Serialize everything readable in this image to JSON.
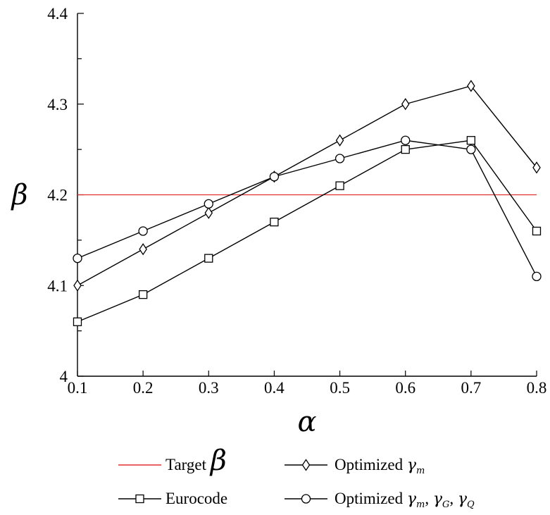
{
  "chart_data": {
    "type": "line",
    "title": "",
    "xlabel": "α",
    "ylabel": "β",
    "x": [
      0.1,
      0.2,
      0.3,
      0.4,
      0.5,
      0.6,
      0.7,
      0.8
    ],
    "xlim": [
      0.1,
      0.8
    ],
    "ylim": [
      4.0,
      4.4
    ],
    "x_ticks": [
      "0.1",
      "0.2",
      "0.3",
      "0.4",
      "0.5",
      "0.6",
      "0.7",
      "0.8"
    ],
    "y_ticks": [
      "4",
      "4.1",
      "4.2",
      "4.3",
      "4.4"
    ],
    "grid": false,
    "legend_position": "bottom",
    "target": {
      "name": "Target ",
      "symbol": "β",
      "value": 4.2,
      "color": "#e03030"
    },
    "series": [
      {
        "name": "Eurocode",
        "marker": "square",
        "color": "#000000",
        "values": [
          4.06,
          4.09,
          4.13,
          4.17,
          4.21,
          4.25,
          4.26,
          4.16
        ]
      },
      {
        "name": "Optimized ",
        "name_symbols": [
          {
            "sym": "γ",
            "sub": "m"
          }
        ],
        "marker": "diamond",
        "color": "#000000",
        "values": [
          4.1,
          4.14,
          4.18,
          4.22,
          4.26,
          4.3,
          4.32,
          4.23
        ]
      },
      {
        "name": "Optimized ",
        "name_symbols": [
          {
            "sym": "γ",
            "sub": "m"
          },
          {
            "sym": "γ",
            "sub": "G"
          },
          {
            "sym": "γ",
            "sub": "Q"
          }
        ],
        "marker": "circle",
        "color": "#000000",
        "values": [
          4.13,
          4.16,
          4.19,
          4.22,
          4.24,
          4.26,
          4.25,
          4.11
        ]
      }
    ]
  }
}
